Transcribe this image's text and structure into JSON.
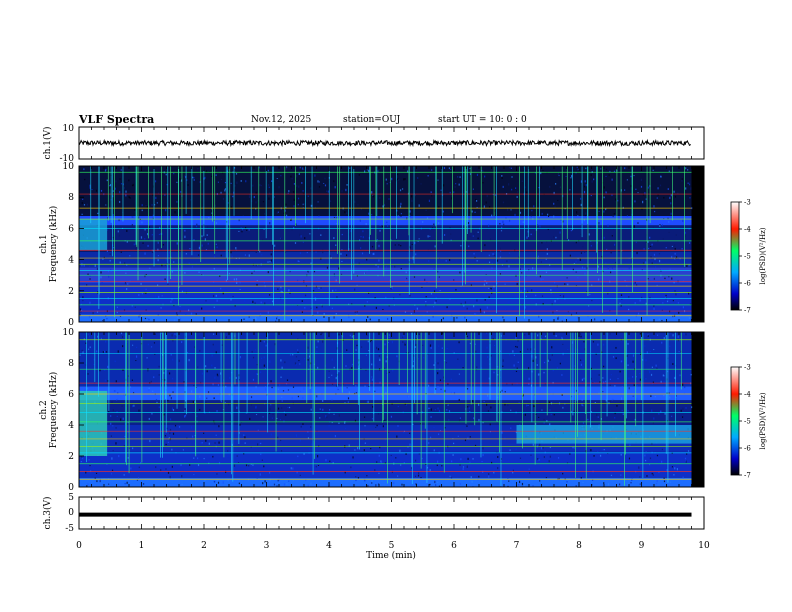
{
  "header": {
    "title": "VLF Spectra",
    "date": "Nov.12, 2025",
    "station": "station=OUJ",
    "start": "start  UT =  10: 0  : 0"
  },
  "chart_data": [
    {
      "type": "line",
      "panel": "ch1-waveform",
      "ylabel": "ch.1(V)",
      "ylim": [
        -10,
        10
      ],
      "y_ticks": [
        "10",
        "-10"
      ],
      "x_range_min": [
        0,
        9.8
      ],
      "baseline_v": 0,
      "noise_amplitude_v": 1.5
    },
    {
      "type": "heatmap",
      "panel": "ch1-spectrogram",
      "ylabel": "ch.1\nFrequency (kHz)",
      "ylim_khz": [
        0,
        10
      ],
      "y_ticks": [
        "0",
        "2",
        "4",
        "6",
        "8",
        "10"
      ],
      "colorbar": {
        "label": "log(PSD)(V²/Hz)",
        "range": [
          -7,
          -3
        ],
        "ticks": [
          "-3",
          "-4",
          "-5",
          "-6",
          "-7"
        ]
      },
      "background_khz": [
        [
          0,
          0.5,
          "#1d6dff"
        ],
        [
          0.5,
          2.5,
          "#0e2fc8"
        ],
        [
          2.5,
          3.5,
          "#2a3fcf"
        ],
        [
          3.5,
          4.5,
          "#0a2aa8"
        ],
        [
          4.5,
          6.2,
          "#0a1c7a"
        ],
        [
          6.2,
          6.8,
          "#1f4cff"
        ],
        [
          6.8,
          10,
          "#06113d"
        ]
      ],
      "early_segment": {
        "x_min": [
          0,
          0.45
        ],
        "freq_khz": [
          4.6,
          6.6
        ],
        "color": "#1aa0d8"
      },
      "line_freqs_khz": [
        0.4,
        0.7,
        1.1,
        1.5,
        1.9,
        2.3,
        2.6,
        3.0,
        3.3,
        3.7,
        4.1,
        4.6,
        5.2,
        6.0,
        6.6,
        7.3,
        8.2,
        9.6
      ]
    },
    {
      "type": "heatmap",
      "panel": "ch2-spectrogram",
      "ylabel": "ch.2\nFrequency (kHz)",
      "ylim_khz": [
        0,
        10
      ],
      "y_ticks": [
        "0",
        "2",
        "4",
        "6",
        "8",
        "10"
      ],
      "colorbar": {
        "label": "log(PSD)(V²/Hz)",
        "range": [
          -7,
          -3
        ],
        "ticks": [
          "-3",
          "-4",
          "-5",
          "-6",
          "-7"
        ]
      },
      "background_khz": [
        [
          0,
          0.6,
          "#1d6dff"
        ],
        [
          0.6,
          2.3,
          "#0e2fc8"
        ],
        [
          2.3,
          4.0,
          "#0d2cb8"
        ],
        [
          4.0,
          5.6,
          "#0a1f8c"
        ],
        [
          5.6,
          6.5,
          "#1f5cff"
        ],
        [
          6.5,
          10,
          "#0a2bb0"
        ]
      ],
      "early_segment": {
        "x_min": [
          0,
          0.45
        ],
        "freq_khz": [
          2.0,
          6.2
        ],
        "color": "#2cc8b8"
      },
      "late_segment": {
        "x_min": [
          7.0,
          9.8
        ],
        "freq_khz": [
          2.8,
          4.0
        ],
        "color": "#1aa6e0"
      },
      "line_freqs_khz": [
        0.5,
        1.0,
        1.5,
        2.2,
        2.6,
        3.1,
        3.6,
        4.2,
        4.8,
        5.4,
        6.0,
        6.7,
        7.6,
        8.6,
        9.5
      ]
    },
    {
      "type": "line",
      "panel": "ch3-waveform",
      "ylabel": "ch.3(V)",
      "ylim": [
        -5,
        5
      ],
      "y_ticks": [
        "5",
        "0",
        "-5"
      ],
      "x_range_min": [
        0,
        9.8
      ],
      "level_v": -0.5
    }
  ],
  "xaxis": {
    "label": "Time (min)",
    "range": [
      0,
      10
    ],
    "ticks": [
      "0",
      "1",
      "2",
      "3",
      "4",
      "5",
      "6",
      "7",
      "8",
      "9",
      "10"
    ]
  }
}
